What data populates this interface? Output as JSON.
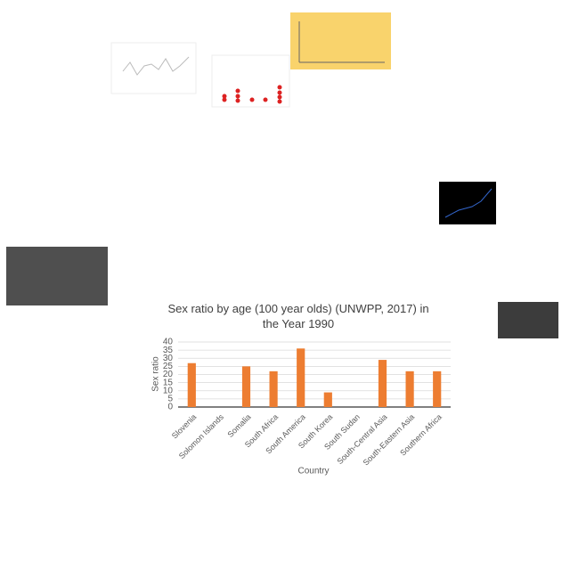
{
  "chart_data": {
    "type": "bar",
    "title": "Sex ratio by age (100 year olds) (UNWPP, 2017) in the Year 1990",
    "x_label": "Country",
    "y_label": "Sex ratio",
    "categories": [
      "Slovenia",
      "Solomon Islands",
      "Somalia",
      "South Africa",
      "South America",
      "South Korea",
      "South Sudan",
      "South-Central Asia",
      "South-Eastern Asia",
      "Southern Africa"
    ],
    "values": [
      27,
      null,
      25,
      22,
      36,
      9,
      null,
      29,
      22,
      22
    ],
    "color": "#ed7d31",
    "ylim": [
      0,
      40
    ],
    "yticks": [
      0,
      5,
      10,
      15,
      20,
      25,
      30,
      35,
      40
    ],
    "grid": true
  }
}
